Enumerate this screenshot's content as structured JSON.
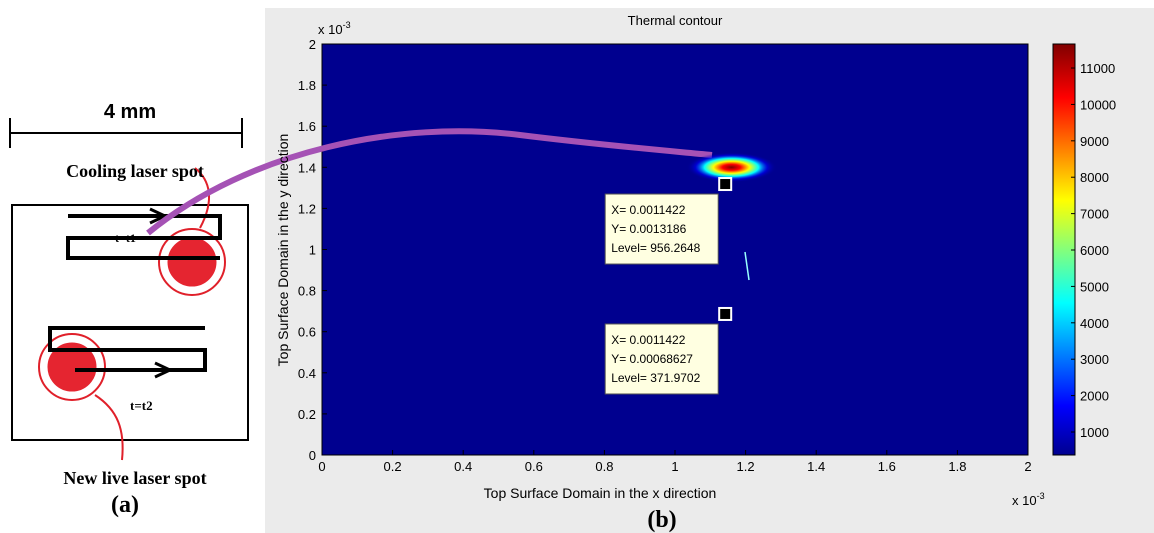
{
  "diagram": {
    "width_label": "4 mm",
    "top_label": "Cooling laser spot",
    "time1": "t=t1",
    "time2": "t=t2",
    "bottom_label": "New live laser spot",
    "panel_label": "(a)"
  },
  "chart_data": {
    "type": "contour",
    "title": "Thermal contour",
    "xlabel": "Top Surface Domain  in the x direction",
    "ylabel": "Top Surface Domain in the y direction",
    "multiplier": {
      "base": "x 10",
      "exponent": "-3"
    },
    "xlim": [
      0,
      2
    ],
    "ylim": [
      0,
      2
    ],
    "xticks": [
      0,
      0.2,
      0.4,
      0.6,
      0.8,
      1,
      1.2,
      1.4,
      1.6,
      1.8,
      2
    ],
    "yticks": [
      0,
      0.2,
      0.4,
      0.6,
      0.8,
      1,
      1.2,
      1.4,
      1.6,
      1.8,
      2
    ],
    "clim": [
      368,
      11660
    ],
    "cticks": [
      1000,
      2000,
      3000,
      4000,
      5000,
      6000,
      7000,
      8000,
      9000,
      10000,
      11000
    ],
    "hotspot": {
      "x": 1.16,
      "y": 1.4,
      "peak": 11660
    },
    "markers": [
      {
        "x": 1.1422,
        "y": 1.3186,
        "label": [
          "X= 0.0011422",
          "Y= 0.0013186",
          "Level= 956.2648"
        ]
      },
      {
        "x": 1.1422,
        "y": 0.68627,
        "label": [
          "X= 0.0011422",
          "Y= 0.00068627",
          "Level= 371.9702"
        ]
      }
    ],
    "panel_label": "(b)"
  }
}
